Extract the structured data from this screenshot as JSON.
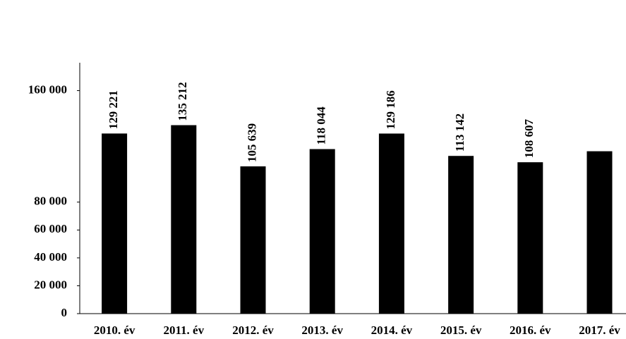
{
  "chart_data": {
    "type": "bar",
    "categories": [
      "2010. év",
      "2011. év",
      "2012. év",
      "2013. év",
      "2014. év",
      "2015. év",
      "2016. év",
      "2017. év"
    ],
    "values": [
      129221,
      135212,
      105639,
      118044,
      129186,
      113142,
      108607,
      116500
    ],
    "value_labels": [
      "129 221",
      "135 212",
      "105 639",
      "118 044",
      "129 186",
      "113 142",
      "108 607",
      null
    ],
    "color": "#000000",
    "ylim": [
      0,
      180000
    ],
    "yticks": [
      {
        "value": 0,
        "label": "0"
      },
      {
        "value": 20000,
        "label": "20 000"
      },
      {
        "value": 40000,
        "label": "40 000"
      },
      {
        "value": 60000,
        "label": "60 000"
      },
      {
        "value": 80000,
        "label": "80 000"
      },
      {
        "value": 160000,
        "label": "160 000"
      }
    ],
    "grid": false
  }
}
